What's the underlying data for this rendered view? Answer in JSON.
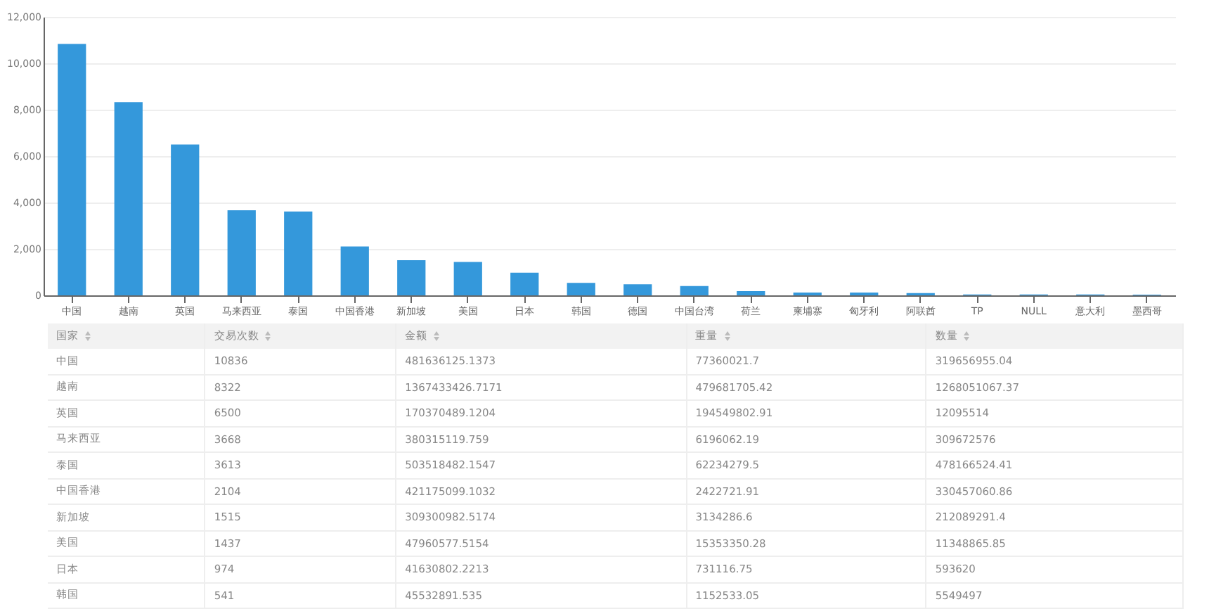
{
  "chart_data": [
    {
      "type": "bar",
      "categories": [
        "中国",
        "越南",
        "英国",
        "马来西亚",
        "泰国",
        "中国香港",
        "新加坡",
        "美国",
        "日本",
        "韩国",
        "德国",
        "中国台湾",
        "荷兰",
        "柬埔寨",
        "匈牙利",
        "阿联酋",
        "TP",
        "NULL",
        "意大利",
        "墨西哥"
      ],
      "values": [
        10836,
        8322,
        6500,
        3668,
        3613,
        2104,
        1515,
        1437,
        974,
        541,
        480,
        400,
        180,
        120,
        120,
        100,
        40,
        40,
        40,
        30
      ],
      "color": "#3498db",
      "ylim": [
        0,
        12000
      ],
      "yticks": [
        0,
        {
          "value": 2000,
          "label": "2,000"
        },
        {
          "value": 4000,
          "label": "4,000"
        },
        {
          "value": 6000,
          "label": "6,000"
        },
        {
          "value": 8000,
          "label": "8,000"
        },
        {
          "value": 10000,
          "label": "10,000"
        },
        {
          "value": 12000,
          "label": "12,000"
        }
      ],
      "grid": "y"
    },
    {
      "type": "other",
      "categories": [
        "国家",
        "交易次数",
        "金额",
        "重量",
        "数量"
      ],
      "y_categories": [
        "中国",
        "越南",
        "英国",
        "马来西亚",
        "泰国",
        "中国香港",
        "新加坡",
        "美国",
        "日本",
        "韩国"
      ],
      "cell_labels": [
        [
          "10836",
          "481636125.1373",
          "77360021.7",
          "319656955.04"
        ],
        [
          "8322",
          "1367433426.7171",
          "479681705.42",
          "1268051067.37"
        ],
        [
          "6500",
          "170370489.1204",
          "194549802.91",
          "12095514"
        ],
        [
          "3668",
          "380315119.759",
          "6196062.19",
          "309672576"
        ],
        [
          "3613",
          "503518482.1547",
          "62234279.5",
          "478166524.41"
        ],
        [
          "2104",
          "421175099.1032",
          "2422721.91",
          "330457060.86"
        ],
        [
          "1515",
          "309300982.5174",
          "3134286.6",
          "212089291.4"
        ],
        [
          "1437",
          "47960577.5154",
          "15353350.28",
          "11348865.85"
        ],
        [
          "974",
          "41630802.2213",
          "731116.75",
          "593620"
        ],
        [
          "541",
          "45532891.535",
          "1152533.05",
          "5549497"
        ]
      ]
    }
  ]
}
